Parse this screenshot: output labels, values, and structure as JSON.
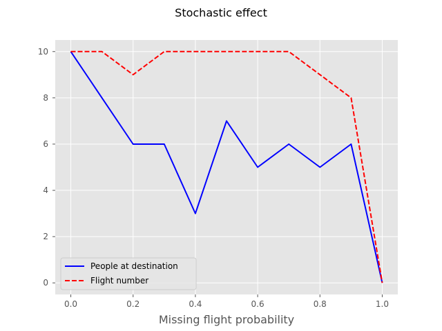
{
  "chart_data": {
    "type": "line",
    "title": "Stochastic effect",
    "xlabel": "Missing flight probability",
    "ylabel": "",
    "x": [
      0.0,
      0.1,
      0.2,
      0.3,
      0.4,
      0.5,
      0.6,
      0.7,
      0.8,
      0.9,
      1.0
    ],
    "xlim": [
      -0.05,
      1.05
    ],
    "ylim": [
      -0.5,
      10.5
    ],
    "xticks": [
      0.0,
      0.2,
      0.4,
      0.6,
      0.8,
      1.0
    ],
    "xtick_labels": [
      "0.0",
      "0.2",
      "0.4",
      "0.6",
      "0.8",
      "1.0"
    ],
    "yticks": [
      0,
      2,
      4,
      6,
      8,
      10
    ],
    "ytick_labels": [
      "0",
      "2",
      "4",
      "6",
      "8",
      "10"
    ],
    "grid": true,
    "style": "ggplot",
    "legend_position": "lower-left",
    "series": [
      {
        "name": "People at destination",
        "values": [
          10,
          8,
          6,
          6,
          3,
          7,
          5,
          6,
          5,
          6,
          0
        ],
        "color": "#0000ff",
        "linestyle": "solid"
      },
      {
        "name": "Flight number",
        "values": [
          10,
          10,
          9,
          10,
          10,
          10,
          10,
          10,
          9,
          8,
          0
        ],
        "color": "#ff0000",
        "linestyle": "dashed"
      }
    ],
    "colors": {
      "plot_background": "#e5e5e5",
      "grid": "#ffffff",
      "tick_text": "#555555"
    }
  }
}
